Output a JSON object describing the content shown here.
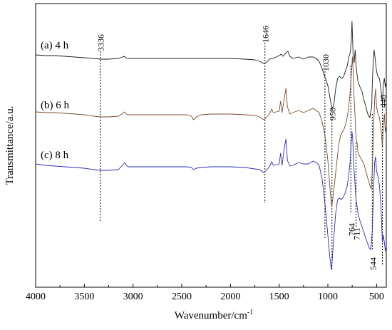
{
  "chart_data": {
    "type": "line",
    "xlabel": "Wavenumber/cm",
    "xlabel_sup": "-1",
    "ylabel": "Transmittance/a.u.",
    "xlim": [
      4000,
      400
    ],
    "x_reversed": true,
    "yaxis_ticks": false,
    "x_ticks": [
      {
        "value": 4000,
        "label": "4000"
      },
      {
        "value": 3500,
        "label": "3500"
      },
      {
        "value": 3000,
        "label": "3000"
      },
      {
        "value": 2500,
        "label": "2500"
      },
      {
        "value": 2000,
        "label": "2000"
      },
      {
        "value": 1500,
        "label": "1500"
      },
      {
        "value": 1000,
        "label": "1000"
      },
      {
        "value": 500,
        "label": "500"
      }
    ],
    "series": [
      {
        "name": "(a) 4 h",
        "color": "#1a1a1a",
        "points": [
          [
            4000,
            77
          ],
          [
            3900,
            78
          ],
          [
            3800,
            78
          ],
          [
            3700,
            79
          ],
          [
            3600,
            80
          ],
          [
            3500,
            81
          ],
          [
            3400,
            82
          ],
          [
            3336,
            83
          ],
          [
            3250,
            83
          ],
          [
            3150,
            82
          ],
          [
            3090,
            79
          ],
          [
            3075,
            81
          ],
          [
            3050,
            82
          ],
          [
            3000,
            82
          ],
          [
            2800,
            82
          ],
          [
            2600,
            82
          ],
          [
            2400,
            82
          ],
          [
            2200,
            82
          ],
          [
            2000,
            82
          ],
          [
            1850,
            83
          ],
          [
            1750,
            84
          ],
          [
            1700,
            86
          ],
          [
            1660,
            89
          ],
          [
            1646,
            89
          ],
          [
            1620,
            86
          ],
          [
            1600,
            83
          ],
          [
            1560,
            82
          ],
          [
            1500,
            78
          ],
          [
            1480,
            76
          ],
          [
            1460,
            79
          ],
          [
            1430,
            74
          ],
          [
            1410,
            72
          ],
          [
            1390,
            79
          ],
          [
            1360,
            82
          ],
          [
            1300,
            80
          ],
          [
            1250,
            83
          ],
          [
            1200,
            80
          ],
          [
            1150,
            80
          ],
          [
            1120,
            82
          ],
          [
            1090,
            86
          ],
          [
            1060,
            96
          ],
          [
            1030,
            108
          ],
          [
            1000,
            120
          ],
          [
            975,
            140
          ],
          [
            958,
            152
          ],
          [
            940,
            148
          ],
          [
            920,
            125
          ],
          [
            900,
            110
          ],
          [
            880,
            107
          ],
          [
            860,
            110
          ],
          [
            840,
            108
          ],
          [
            820,
            100
          ],
          [
            800,
            92
          ],
          [
            785,
            80
          ],
          [
            770,
            74
          ],
          [
            760,
            58
          ],
          [
            752,
            30
          ],
          [
            746,
            55
          ],
          [
            740,
            80
          ],
          [
            730,
            88
          ],
          [
            720,
            70
          ],
          [
            711,
            90
          ],
          [
            700,
            105
          ],
          [
            690,
            115
          ],
          [
            670,
            122
          ],
          [
            650,
            128
          ],
          [
            630,
            140
          ],
          [
            610,
            150
          ],
          [
            590,
            160
          ],
          [
            570,
            165
          ],
          [
            560,
            158
          ],
          [
            550,
            150
          ],
          [
            544,
            120
          ],
          [
            535,
            90
          ],
          [
            525,
            70
          ],
          [
            515,
            82
          ],
          [
            500,
            100
          ],
          [
            485,
            108
          ],
          [
            470,
            110
          ],
          [
            455,
            125
          ],
          [
            440,
            145
          ],
          [
            430,
            118
          ],
          [
            420,
            110
          ],
          [
            410,
            122
          ],
          [
            400,
            115
          ]
        ]
      },
      {
        "name": "(b) 6 h",
        "color": "#7a4a2c",
        "points": [
          [
            4000,
            157
          ],
          [
            3900,
            158
          ],
          [
            3800,
            158
          ],
          [
            3700,
            159
          ],
          [
            3600,
            160
          ],
          [
            3500,
            161
          ],
          [
            3400,
            163
          ],
          [
            3336,
            164
          ],
          [
            3250,
            164
          ],
          [
            3150,
            163
          ],
          [
            3085,
            157
          ],
          [
            3070,
            160
          ],
          [
            3050,
            161
          ],
          [
            3000,
            161
          ],
          [
            2800,
            161
          ],
          [
            2600,
            161
          ],
          [
            2450,
            161
          ],
          [
            2400,
            163
          ],
          [
            2380,
            168
          ],
          [
            2350,
            164
          ],
          [
            2300,
            161
          ],
          [
            2200,
            160
          ],
          [
            2000,
            160
          ],
          [
            1850,
            161
          ],
          [
            1750,
            162
          ],
          [
            1700,
            164
          ],
          [
            1660,
            168
          ],
          [
            1646,
            167
          ],
          [
            1620,
            163
          ],
          [
            1600,
            160
          ],
          [
            1575,
            153
          ],
          [
            1560,
            158
          ],
          [
            1500,
            156
          ],
          [
            1485,
            142
          ],
          [
            1470,
            158
          ],
          [
            1450,
            140
          ],
          [
            1430,
            124
          ],
          [
            1415,
            150
          ],
          [
            1390,
            160
          ],
          [
            1360,
            158
          ],
          [
            1300,
            155
          ],
          [
            1250,
            158
          ],
          [
            1200,
            155
          ],
          [
            1150,
            152
          ],
          [
            1120,
            155
          ],
          [
            1090,
            158
          ],
          [
            1060,
            170
          ],
          [
            1030,
            190
          ],
          [
            1000,
            225
          ],
          [
            975,
            270
          ],
          [
            960,
            290
          ],
          [
            950,
            280
          ],
          [
            930,
            255
          ],
          [
            910,
            230
          ],
          [
            890,
            205
          ],
          [
            870,
            190
          ],
          [
            850,
            185
          ],
          [
            830,
            180
          ],
          [
            810,
            170
          ],
          [
            790,
            155
          ],
          [
            775,
            135
          ],
          [
            764,
            115
          ],
          [
            755,
            95
          ],
          [
            748,
            80
          ],
          [
            740,
            100
          ],
          [
            730,
            140
          ],
          [
            720,
            165
          ],
          [
            711,
            195
          ],
          [
            700,
            200
          ],
          [
            690,
            215
          ],
          [
            670,
            220
          ],
          [
            650,
            225
          ],
          [
            630,
            230
          ],
          [
            610,
            240
          ],
          [
            590,
            250
          ],
          [
            570,
            260
          ],
          [
            555,
            265
          ],
          [
            544,
            240
          ],
          [
            535,
            200
          ],
          [
            520,
            140
          ],
          [
            510,
            125
          ],
          [
            500,
            150
          ],
          [
            485,
            160
          ],
          [
            470,
            165
          ],
          [
            455,
            180
          ],
          [
            440,
            205
          ],
          [
            430,
            175
          ],
          [
            420,
            160
          ],
          [
            410,
            185
          ],
          [
            400,
            175
          ]
        ]
      },
      {
        "name": "(c) 8 h",
        "color": "#2b2bb5",
        "points": [
          [
            4000,
            230
          ],
          [
            3900,
            232
          ],
          [
            3800,
            233
          ],
          [
            3700,
            234
          ],
          [
            3600,
            235
          ],
          [
            3500,
            236
          ],
          [
            3400,
            238
          ],
          [
            3336,
            239
          ],
          [
            3250,
            239
          ],
          [
            3150,
            238
          ],
          [
            3085,
            228
          ],
          [
            3070,
            232
          ],
          [
            3050,
            234
          ],
          [
            3000,
            234
          ],
          [
            2800,
            234
          ],
          [
            2600,
            234
          ],
          [
            2450,
            234
          ],
          [
            2400,
            235
          ],
          [
            2380,
            238
          ],
          [
            2350,
            236
          ],
          [
            2300,
            235
          ],
          [
            2200,
            234
          ],
          [
            2000,
            234
          ],
          [
            1850,
            235
          ],
          [
            1750,
            237
          ],
          [
            1700,
            238
          ],
          [
            1660,
            242
          ],
          [
            1646,
            241
          ],
          [
            1620,
            237
          ],
          [
            1600,
            234
          ],
          [
            1575,
            227
          ],
          [
            1560,
            232
          ],
          [
            1500,
            230
          ],
          [
            1485,
            215
          ],
          [
            1470,
            232
          ],
          [
            1450,
            210
          ],
          [
            1430,
            195
          ],
          [
            1415,
            225
          ],
          [
            1390,
            233
          ],
          [
            1360,
            232
          ],
          [
            1300,
            228
          ],
          [
            1250,
            230
          ],
          [
            1200,
            230
          ],
          [
            1150,
            226
          ],
          [
            1120,
            228
          ],
          [
            1090,
            232
          ],
          [
            1060,
            250
          ],
          [
            1030,
            285
          ],
          [
            1000,
            330
          ],
          [
            980,
            360
          ],
          [
            965,
            378
          ],
          [
            955,
            365
          ],
          [
            940,
            335
          ],
          [
            920,
            300
          ],
          [
            900,
            280
          ],
          [
            880,
            278
          ],
          [
            860,
            280
          ],
          [
            840,
            276
          ],
          [
            820,
            270
          ],
          [
            800,
            260
          ],
          [
            785,
            245
          ],
          [
            770,
            225
          ],
          [
            760,
            200
          ],
          [
            752,
            185
          ],
          [
            745,
            195
          ],
          [
            735,
            230
          ],
          [
            725,
            250
          ],
          [
            711,
            280
          ],
          [
            700,
            290
          ],
          [
            690,
            300
          ],
          [
            670,
            310
          ],
          [
            650,
            318
          ],
          [
            630,
            326
          ],
          [
            610,
            335
          ],
          [
            590,
            342
          ],
          [
            575,
            348
          ],
          [
            560,
            350
          ],
          [
            544,
            325
          ],
          [
            535,
            285
          ],
          [
            520,
            228
          ],
          [
            510,
            220
          ],
          [
            500,
            240
          ],
          [
            485,
            248
          ],
          [
            470,
            260
          ],
          [
            455,
            290
          ],
          [
            440,
            340
          ],
          [
            430,
            330
          ],
          [
            420,
            340
          ],
          [
            410,
            352
          ],
          [
            400,
            345
          ]
        ]
      }
    ],
    "annotations": [
      {
        "label": "3336",
        "x": 3336
      },
      {
        "label": "1646",
        "x": 1646
      },
      {
        "label": "1030",
        "x": 1030
      },
      {
        "label": "958",
        "x": 958
      },
      {
        "label": "764",
        "x": 764
      },
      {
        "label": "711",
        "x": 711
      },
      {
        "label": "544",
        "x": 544
      },
      {
        "label": "440",
        "x": 440
      }
    ]
  }
}
